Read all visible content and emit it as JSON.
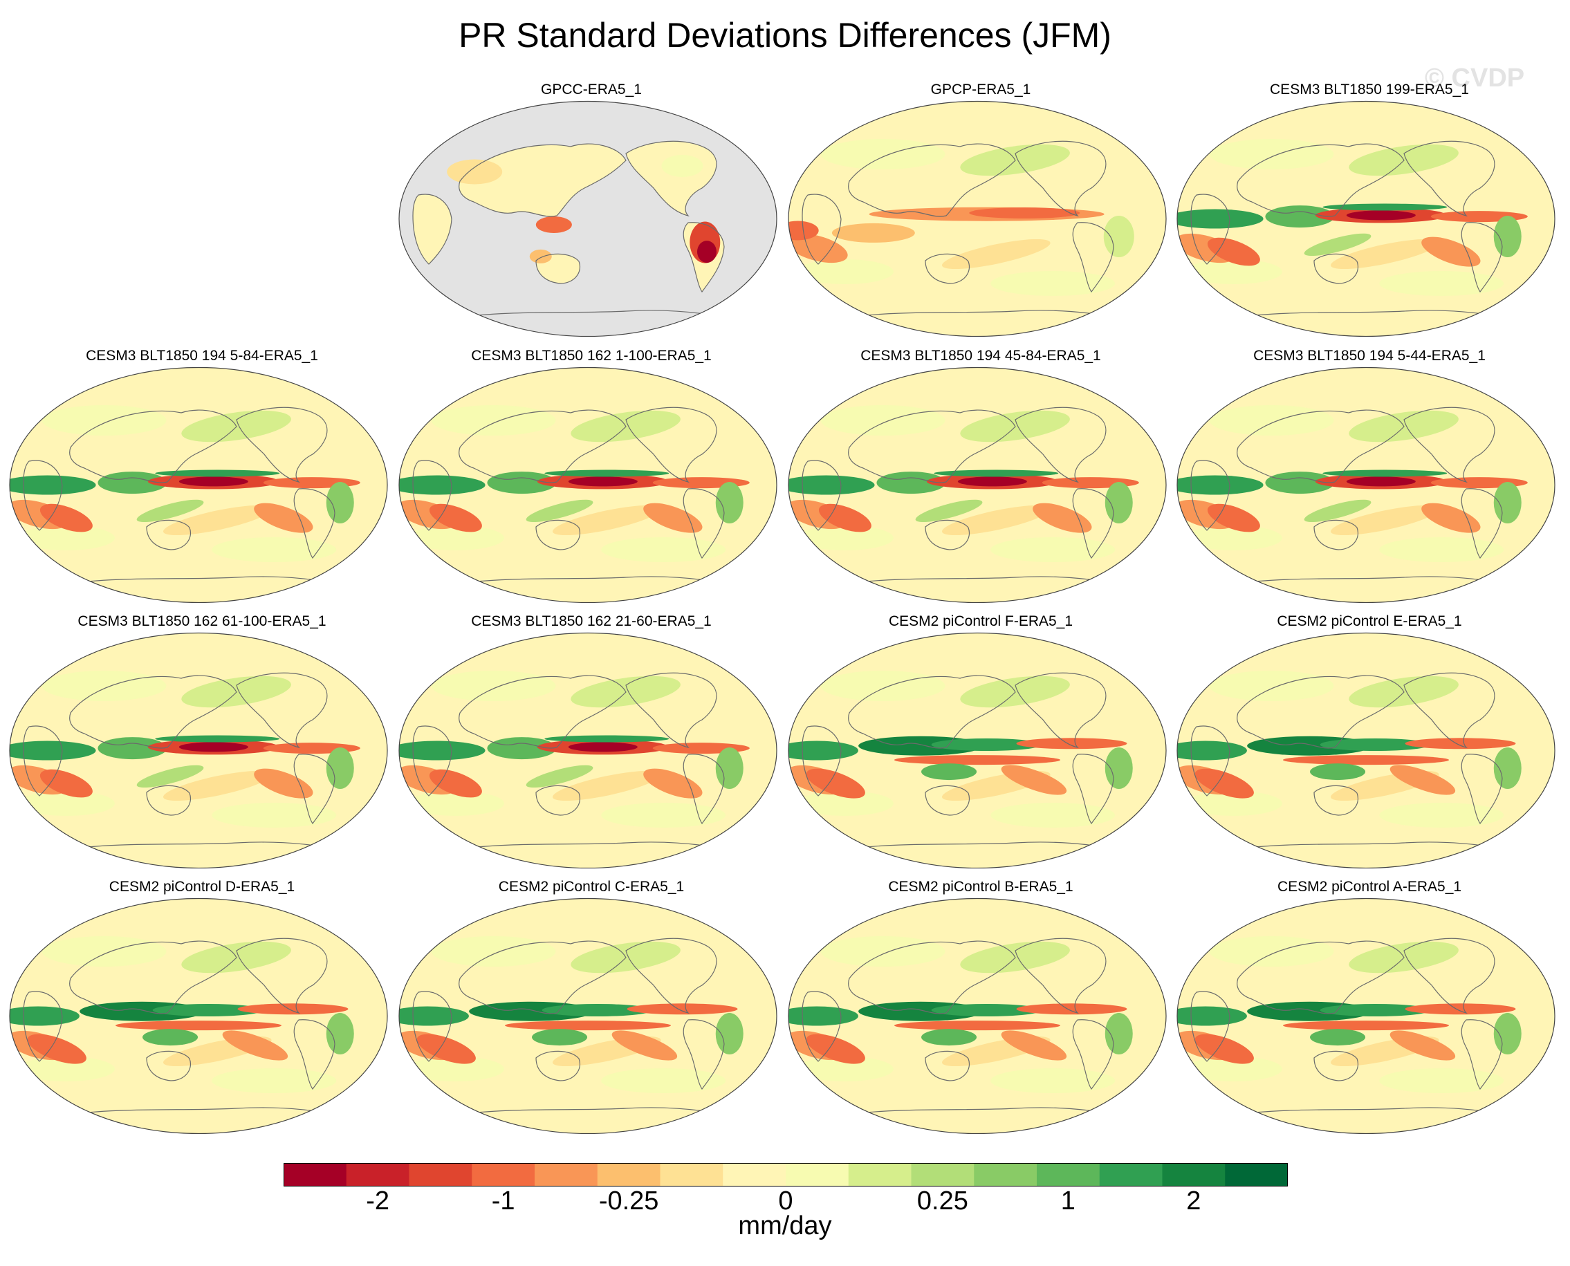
{
  "title": "PR Standard Deviations Differences (JFM)",
  "watermark": "© CVDP",
  "colorbar": {
    "units": "mm/day",
    "tick_labels": [
      "-2",
      "-1",
      "-0.25",
      "0",
      "0.25",
      "1",
      "2"
    ],
    "colors": [
      "#a50026",
      "#c92129",
      "#e0452f",
      "#f26b40",
      "#f99656",
      "#fcbf6e",
      "#fee194",
      "#fff5b6",
      "#f7fbb1",
      "#d6ee8c",
      "#b2de78",
      "#89cb66",
      "#5db75a",
      "#30a052",
      "#15843f",
      "#006837"
    ]
  },
  "map_colors": {
    "ocean_missing": "#e3e3e3",
    "coastline": "#6b6b6b",
    "outline": "#444444"
  },
  "panels": [
    {
      "title": "GPCC-ERA5_1",
      "style": "land"
    },
    {
      "title": "GPCP-ERA5_1",
      "style": "obs"
    },
    {
      "title": "CESM3 BLT1850 199-ERA5_1",
      "style": "model"
    },
    {
      "title": "CESM3 BLT1850 194 5-84-ERA5_1",
      "style": "model"
    },
    {
      "title": "CESM3 BLT1850 162 1-100-ERA5_1",
      "style": "model"
    },
    {
      "title": "CESM3 BLT1850 194 45-84-ERA5_1",
      "style": "model"
    },
    {
      "title": "CESM3 BLT1850 194 5-44-ERA5_1",
      "style": "model"
    },
    {
      "title": "CESM3 BLT1850 162 61-100-ERA5_1",
      "style": "model"
    },
    {
      "title": "CESM3 BLT1850 162 21-60-ERA5_1",
      "style": "model"
    },
    {
      "title": "CESM2 piControl F-ERA5_1",
      "style": "model2"
    },
    {
      "title": "CESM2 piControl E-ERA5_1",
      "style": "model2"
    },
    {
      "title": "CESM2 piControl D-ERA5_1",
      "style": "model2"
    },
    {
      "title": "CESM2 piControl C-ERA5_1",
      "style": "model2"
    },
    {
      "title": "CESM2 piControl B-ERA5_1",
      "style": "model2"
    },
    {
      "title": "CESM2 piControl A-ERA5_1",
      "style": "model2"
    }
  ]
}
